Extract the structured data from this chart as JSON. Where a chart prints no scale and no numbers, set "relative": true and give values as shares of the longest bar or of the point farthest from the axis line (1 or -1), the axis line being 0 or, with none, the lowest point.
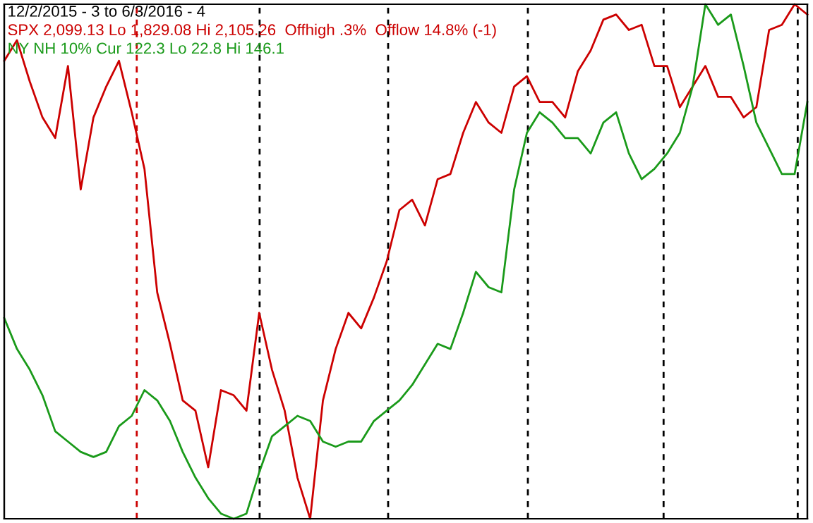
{
  "chart_data": {
    "type": "line",
    "title": "12/2/2015 - 3 to 6/3/2016 - 4",
    "relative": true,
    "line_style": "solid",
    "marker": "none",
    "categories": [
      null,
      null,
      null,
      null,
      null,
      null,
      null,
      null,
      null,
      null,
      null,
      null,
      null,
      null,
      null,
      null,
      null,
      null,
      null,
      null,
      null,
      null,
      null,
      null,
      null,
      null,
      null,
      null,
      null,
      null,
      null,
      null,
      null,
      null,
      null,
      null,
      null,
      null,
      null,
      null,
      null,
      null,
      null,
      null,
      null,
      null,
      null,
      null,
      null,
      null,
      null,
      null,
      null,
      null,
      null,
      null,
      null,
      null,
      null,
      null,
      null,
      null,
      null,
      null
    ],
    "grid": "x",
    "series": [
      {
        "name": "SPX 2,099.13 Lo 1,829.08 Hi 2,105.26  Offhigh .3%  Offlow 14.8% (-1)",
        "color": "#cc0000",
        "values": [
          0.89,
          0.93,
          0.85,
          0.78,
          0.74,
          0.88,
          0.64,
          0.78,
          0.84,
          0.89,
          0.79,
          0.68,
          0.44,
          0.34,
          0.23,
          0.21,
          0.1,
          0.25,
          0.24,
          0.21,
          0.4,
          0.29,
          0.21,
          0.08,
          0,
          0.23,
          0.33,
          0.4,
          0.37,
          0.43,
          0.5,
          0.6,
          0.62,
          0.57,
          0.66,
          0.67,
          0.75,
          0.81,
          0.77,
          0.75,
          0.84,
          0.86,
          0.81,
          0.81,
          0.78,
          0.87,
          0.91,
          0.97,
          0.98,
          0.95,
          0.96,
          0.88,
          0.88,
          0.8,
          0.84,
          0.88,
          0.82,
          0.82,
          0.78,
          0.8,
          0.95,
          0.96,
          1,
          0.98
        ]
      },
      {
        "name": "NY NH 10% Cur 122.3 Lo 22.8 Hi 146.1",
        "color": "#1a9a1a",
        "values": [
          0.39,
          0.33,
          0.29,
          0.24,
          0.17,
          0.15,
          0.13,
          0.12,
          0.13,
          0.18,
          0.2,
          0.25,
          0.23,
          0.19,
          0.13,
          0.08,
          0.04,
          0.01,
          0,
          0.01,
          0.09,
          0.16,
          0.18,
          0.2,
          0.19,
          0.15,
          0.14,
          0.15,
          0.15,
          0.19,
          0.21,
          0.23,
          0.26,
          0.3,
          0.34,
          0.33,
          0.4,
          0.48,
          0.45,
          0.44,
          0.64,
          0.75,
          0.79,
          0.77,
          0.74,
          0.74,
          0.71,
          0.77,
          0.79,
          0.71,
          0.66,
          0.68,
          0.71,
          0.75,
          0.84,
          1,
          0.96,
          0.98,
          0.88,
          0.77,
          0.72,
          0.67,
          0.67,
          0.81
        ]
      }
    ]
  }
}
